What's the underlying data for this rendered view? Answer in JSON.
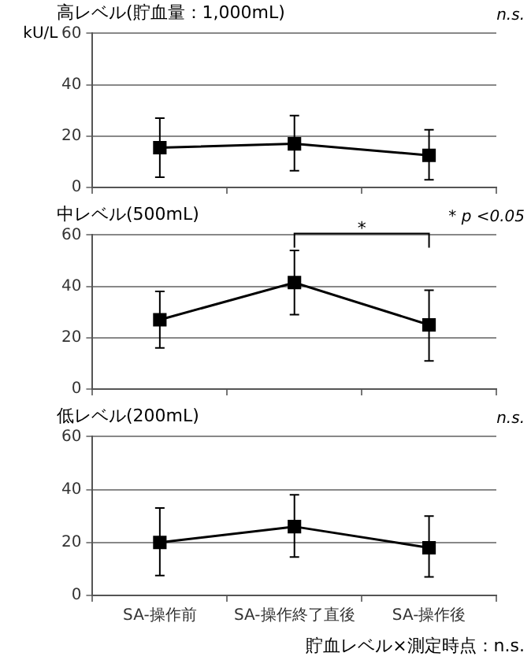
{
  "chart_data": [
    {
      "type": "line",
      "title": "高レベル(貯血量：1,000mL)",
      "ylabel": "kU/L",
      "categories": [
        null,
        null,
        null
      ],
      "series": [
        {
          "color": "#000000",
          "values": [
            15.5,
            17,
            12.5
          ],
          "errors": [
            [
              4,
              27
            ],
            [
              6.5,
              28
            ],
            [
              3,
              22.5
            ]
          ]
        }
      ],
      "ylim": [
        0,
        60
      ],
      "yticks": [
        0,
        20,
        40,
        60
      ],
      "grid": "y",
      "legend": false,
      "marker": "square",
      "tick_labels": "y",
      "annotations": [
        "n.s."
      ]
    },
    {
      "type": "line",
      "title": "中レベル(500mL)",
      "categories": [
        null,
        null,
        null
      ],
      "series": [
        {
          "color": "#000000",
          "values": [
            27,
            41.5,
            25
          ],
          "errors": [
            [
              16,
              38
            ],
            [
              29,
              54
            ],
            [
              11,
              38.5
            ]
          ]
        }
      ],
      "ylim": [
        0,
        60
      ],
      "yticks": [
        0,
        20,
        40,
        60
      ],
      "grid": "y",
      "legend": false,
      "marker": "square",
      "tick_labels": "y",
      "annotations": [
        "* p <0.05",
        "*"
      ]
    },
    {
      "type": "line",
      "title": "低レベル(200mL)",
      "categories": [
        "SA-操作前",
        "SA-操作終了直後",
        "SA-操作後"
      ],
      "series": [
        {
          "color": "#000000",
          "values": [
            20,
            26,
            18
          ],
          "errors": [
            [
              7.5,
              33
            ],
            [
              14.5,
              38
            ],
            [
              7,
              30
            ]
          ]
        }
      ],
      "ylim": [
        0,
        60
      ],
      "yticks": [
        0,
        20,
        40,
        60
      ],
      "grid": "y",
      "legend": false,
      "marker": "square",
      "annotations": [
        "n.s.",
        "貯血レベル×測定時点：n.s."
      ]
    }
  ]
}
